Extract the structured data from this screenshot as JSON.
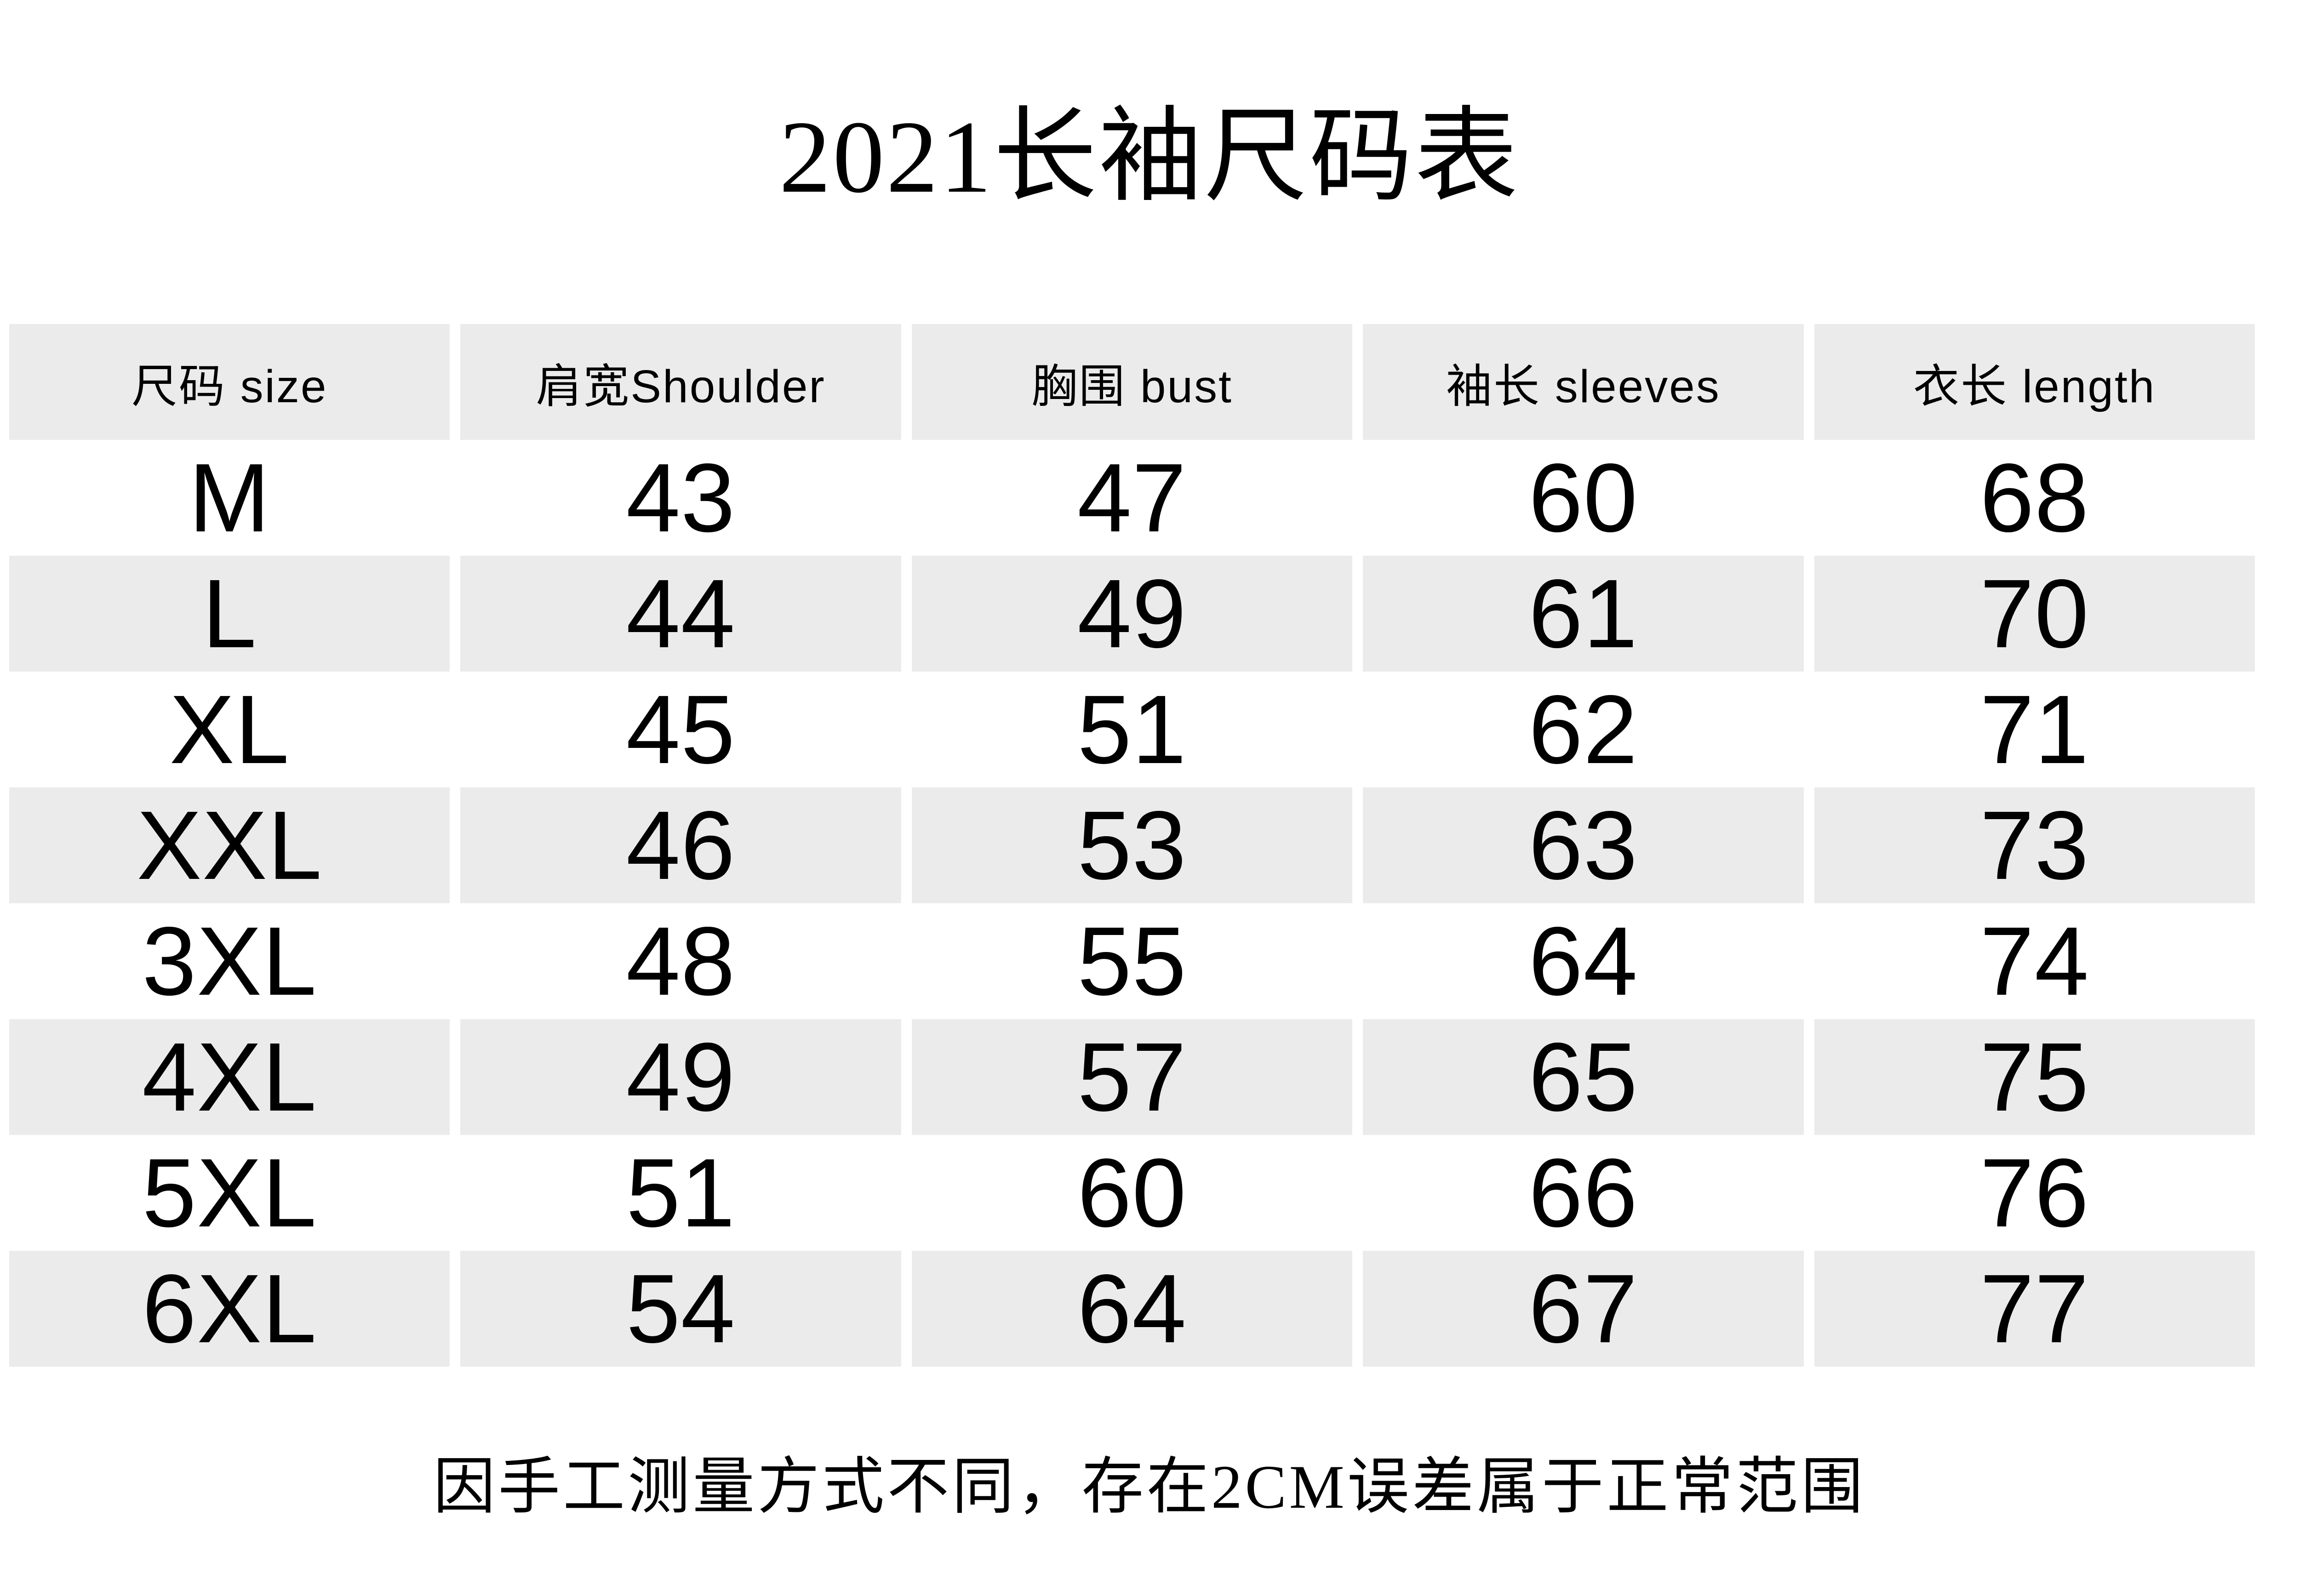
{
  "page": {
    "title": "2021长袖尺码表",
    "footer_note": "因手工测量方式不同，存在2CM误差属于正常范围"
  },
  "colors": {
    "background": "#ffffff",
    "text": "#000000",
    "row_shade": "#ebebeb"
  },
  "chart_data": {
    "type": "table",
    "title": "2021长袖尺码表",
    "columns": [
      "尺码 size",
      "肩宽Shoulder",
      "胸围 bust",
      "袖长 sleeves",
      "衣长 length"
    ],
    "rows": [
      [
        "M",
        43,
        47,
        60,
        68
      ],
      [
        "L",
        44,
        49,
        61,
        70
      ],
      [
        "XL",
        45,
        51,
        62,
        71
      ],
      [
        "XXL",
        46,
        53,
        63,
        73
      ],
      [
        "3XL",
        48,
        55,
        64,
        74
      ],
      [
        "4XL",
        49,
        57,
        65,
        75
      ],
      [
        "5XL",
        51,
        60,
        66,
        76
      ],
      [
        "6XL",
        54,
        64,
        67,
        77
      ]
    ],
    "note": "因手工测量方式不同，存在2CM误差属于正常范围",
    "layout": {
      "shaded_rows": "header and alternating data rows (L, XXL, 4XL, 6XL)",
      "grid": "5 columns with white gaps between shaded cells"
    }
  }
}
